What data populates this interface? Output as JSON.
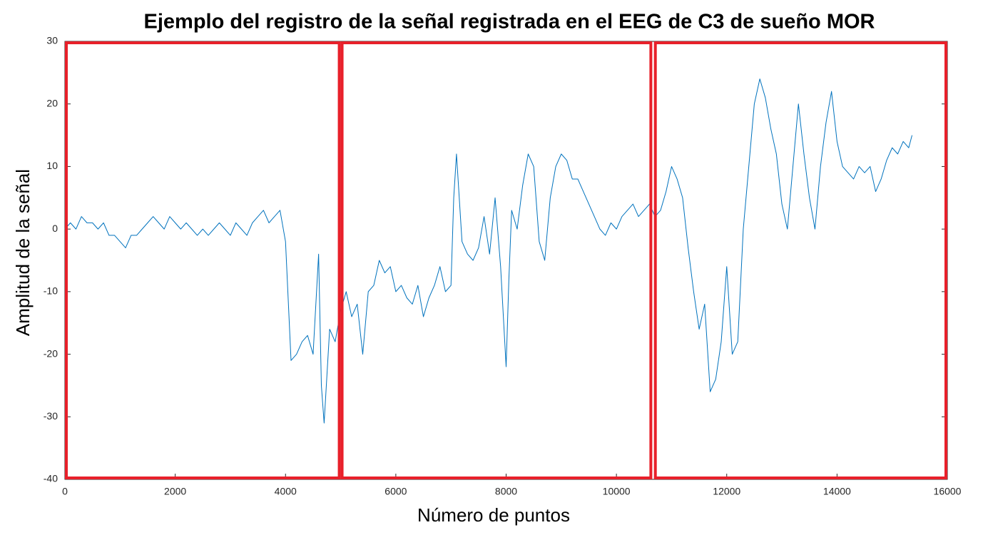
{
  "chart_data": {
    "type": "line",
    "title": "Ejemplo del registro de la señal registrada en el EEG de C3 de sueño MOR",
    "x_label": "Número de puntos",
    "y_label": "Amplitud de la señal",
    "xlim": [
      0,
      16000
    ],
    "xticks": [
      0,
      2000,
      4000,
      6000,
      8000,
      10000,
      12000,
      14000,
      16000
    ],
    "ylim": [
      -40,
      30
    ],
    "yticks": [
      -40,
      -30,
      -20,
      -10,
      0,
      10,
      20,
      30
    ],
    "highlight_regions": [
      [
        0,
        5000
      ],
      [
        5000,
        10650
      ],
      [
        10680,
        16000
      ]
    ],
    "highlight_color": "#e8202a",
    "series": [
      {
        "color": "#0072bd",
        "x": [
          0,
          100,
          200,
          300,
          400,
          500,
          600,
          700,
          800,
          900,
          1000,
          1100,
          1200,
          1300,
          1400,
          1500,
          1600,
          1700,
          1800,
          1900,
          2000,
          2100,
          2200,
          2300,
          2400,
          2500,
          2600,
          2700,
          2800,
          2900,
          3000,
          3100,
          3200,
          3300,
          3400,
          3500,
          3600,
          3700,
          3800,
          3900,
          4000,
          4100,
          4200,
          4300,
          4400,
          4500,
          4600,
          4650,
          4700,
          4800,
          4900,
          5000,
          5100,
          5200,
          5300,
          5400,
          5500,
          5600,
          5700,
          5800,
          5900,
          6000,
          6100,
          6200,
          6300,
          6400,
          6500,
          6600,
          6700,
          6800,
          6900,
          7000,
          7050,
          7100,
          7200,
          7300,
          7400,
          7500,
          7600,
          7700,
          7800,
          7900,
          8000,
          8050,
          8100,
          8200,
          8300,
          8400,
          8500,
          8600,
          8700,
          8800,
          8900,
          9000,
          9100,
          9200,
          9300,
          9400,
          9500,
          9600,
          9700,
          9800,
          9900,
          10000,
          10100,
          10200,
          10300,
          10400,
          10500,
          10600,
          10700,
          10800,
          10900,
          11000,
          11100,
          11200,
          11300,
          11400,
          11500,
          11600,
          11700,
          11800,
          11900,
          12000,
          12100,
          12200,
          12300,
          12400,
          12500,
          12600,
          12700,
          12800,
          12900,
          13000,
          13100,
          13200,
          13300,
          13400,
          13500,
          13600,
          13700,
          13800,
          13900,
          14000,
          14100,
          14200,
          14300,
          14400,
          14500,
          14600,
          14700,
          14800,
          14900,
          15000,
          15100,
          15200,
          15300,
          15360
        ],
        "values": [
          0,
          1,
          0,
          2,
          1,
          1,
          0,
          1,
          -1,
          -1,
          -2,
          -3,
          -1,
          -1,
          0,
          1,
          2,
          1,
          0,
          2,
          1,
          0,
          1,
          0,
          -1,
          0,
          -1,
          0,
          1,
          0,
          -1,
          1,
          0,
          -1,
          1,
          2,
          3,
          1,
          2,
          3,
          -2,
          -21,
          -20,
          -18,
          -17,
          -20,
          -4,
          -25,
          -31,
          -16,
          -18,
          -13,
          -10,
          -14,
          -12,
          -20,
          -10,
          -9,
          -5,
          -7,
          -6,
          -10,
          -9,
          -11,
          -12,
          -9,
          -14,
          -11,
          -9,
          -6,
          -10,
          -9,
          5,
          12,
          -2,
          -4,
          -5,
          -3,
          2,
          -4,
          5,
          -6,
          -22,
          -8,
          3,
          0,
          7,
          12,
          10,
          -2,
          -5,
          5,
          10,
          12,
          11,
          8,
          8,
          6,
          4,
          2,
          0,
          -1,
          1,
          0,
          2,
          3,
          4,
          2,
          3,
          4,
          2,
          3,
          6,
          10,
          8,
          5,
          -3,
          -10,
          -16,
          -12,
          -26,
          -24,
          -18,
          -6,
          -20,
          -18,
          0,
          10,
          20,
          24,
          21,
          16,
          12,
          4,
          0,
          10,
          20,
          12,
          5,
          0,
          10,
          17,
          22,
          14,
          10,
          9,
          8,
          10,
          9,
          10,
          6,
          8,
          11,
          13,
          12,
          14,
          13,
          15
        ]
      }
    ]
  }
}
